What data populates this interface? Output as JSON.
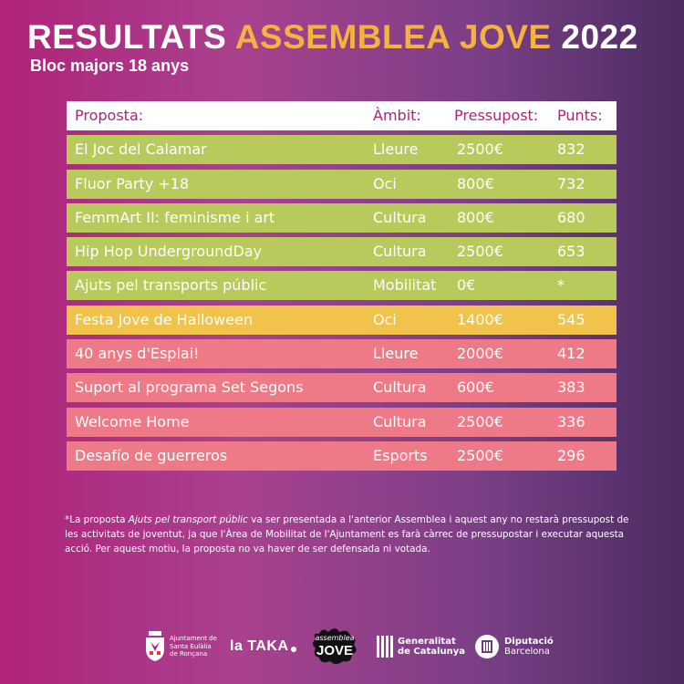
{
  "header": {
    "title_part1": "RESULTATS",
    "title_part2": "ASSEMBLEA JOVE",
    "title_part3": "2022",
    "subtitle": "Bloc majors 18 anys"
  },
  "table": {
    "columns": [
      "Proposta:",
      "Àmbit:",
      "Pressupost:",
      "Punts:"
    ],
    "rows": [
      {
        "proposta": "El Joc del Calamar",
        "ambit": "Lleure",
        "pressupost": "2500€",
        "punts": "832",
        "color": "green"
      },
      {
        "proposta": "Fluor Party +18",
        "ambit": "Oci",
        "pressupost": "800€",
        "punts": "732",
        "color": "green"
      },
      {
        "proposta": "FemmArt II: feminisme i art",
        "ambit": "Cultura",
        "pressupost": "800€",
        "punts": "680",
        "color": "green"
      },
      {
        "proposta": "Hip Hop UndergroundDay",
        "ambit": "Cultura",
        "pressupost": "2500€",
        "punts": "653",
        "color": "green"
      },
      {
        "proposta": "Ajuts pel transports públic",
        "ambit": "Mobilitat",
        "pressupost": "0€",
        "punts": "*",
        "color": "green"
      },
      {
        "proposta": "Festa Jove de Halloween",
        "ambit": "Oci",
        "pressupost": "1400€",
        "punts": "545",
        "color": "yellow"
      },
      {
        "proposta": "40 anys d'Esplai!",
        "ambit": "Lleure",
        "pressupost": "2000€",
        "punts": "412",
        "color": "pink"
      },
      {
        "proposta": "Suport al programa Set Segons",
        "ambit": "Cultura",
        "pressupost": "600€",
        "punts": "383",
        "color": "pink"
      },
      {
        "proposta": "Welcome Home",
        "ambit": "Cultura",
        "pressupost": "2500€",
        "punts": "336",
        "color": "pink"
      },
      {
        "proposta": "Desafío de guerreros",
        "ambit": "Esports",
        "pressupost": "2500€",
        "punts": "296",
        "color": "pink"
      }
    ]
  },
  "footnote": {
    "prefix": "*La proposta ",
    "italic": "Ajuts pel transport públic",
    "suffix": " va ser presentada a l'anterior Assemblea i aquest any no restarà pressupost de les activitats de joventut, ja que l'Àrea de Mobilitat de l'Ajuntament es farà càrrec de pressupostar i executar aquesta acció. Per aquest motiu, la proposta no va haver de ser defensada ni votada."
  },
  "logos": {
    "ajuntament": [
      "Ajuntament de",
      "Santa Eulàlia",
      "de Ronçana"
    ],
    "lataka": "la TAKA",
    "assemblea_top": "assemblea",
    "assemblea_bottom": "JOVE",
    "generalitat": [
      "Generalitat",
      "de Catalunya"
    ],
    "diputacio": [
      "Diputació",
      "Barcelona"
    ]
  },
  "colors": {
    "green": "#b8ca5c",
    "yellow": "#f1c34d",
    "pink": "#ef7a87",
    "accent": "#f4b23e",
    "header_text": "#b0237a"
  }
}
